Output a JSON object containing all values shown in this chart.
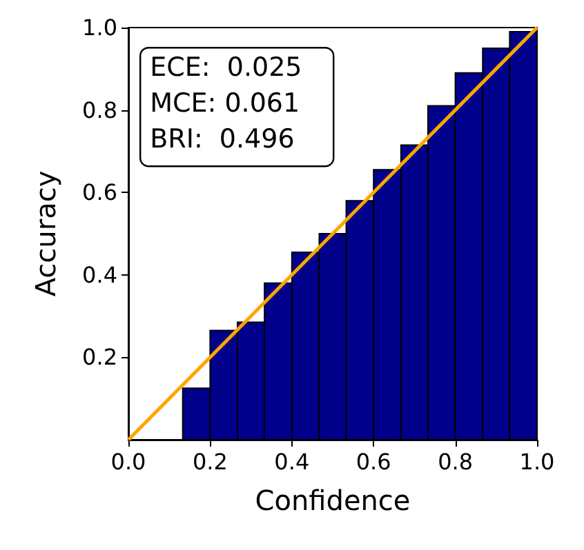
{
  "chart_data": {
    "type": "histogram",
    "xlabel": "Confidence",
    "ylabel": "Accuracy",
    "bins": [
      0.133,
      0.2,
      0.267,
      0.333,
      0.4,
      0.467,
      0.533,
      0.6,
      0.667,
      0.733,
      0.8,
      0.867,
      0.933,
      1.0
    ],
    "series": [
      {
        "color": "#00008b",
        "values": [
          0.125,
          0.265,
          0.285,
          0.38,
          0.455,
          0.5,
          0.58,
          0.655,
          0.715,
          0.81,
          0.89,
          0.95,
          0.99
        ]
      },
      {
        "type": "line",
        "color": "#ffa500",
        "x": [
          0,
          1
        ],
        "values": [
          0,
          1
        ]
      }
    ],
    "xlim": [
      0,
      1
    ],
    "ylim": [
      0,
      1
    ],
    "xticks": [
      {
        "value": 0,
        "label": "0.0"
      },
      {
        "value": 0.2,
        "label": "0.2"
      },
      {
        "value": 0.4,
        "label": "0.4"
      },
      {
        "value": 0.6,
        "label": "0.6"
      },
      {
        "value": 0.8,
        "label": "0.8"
      },
      {
        "value": 1,
        "label": "1.0"
      }
    ],
    "yticks": [
      {
        "value": 0.2,
        "label": "0.2"
      },
      {
        "value": 0.4,
        "label": "0.4"
      },
      {
        "value": 0.6,
        "label": "0.6"
      },
      {
        "value": 0.8,
        "label": "0.8"
      },
      {
        "value": 1,
        "label": "1.0"
      }
    ],
    "annotations": [
      "ECE:  0.025",
      "MCE: 0.061",
      "BRI:  0.496"
    ],
    "grid": false,
    "marker": "none",
    "line_style": "solid"
  }
}
